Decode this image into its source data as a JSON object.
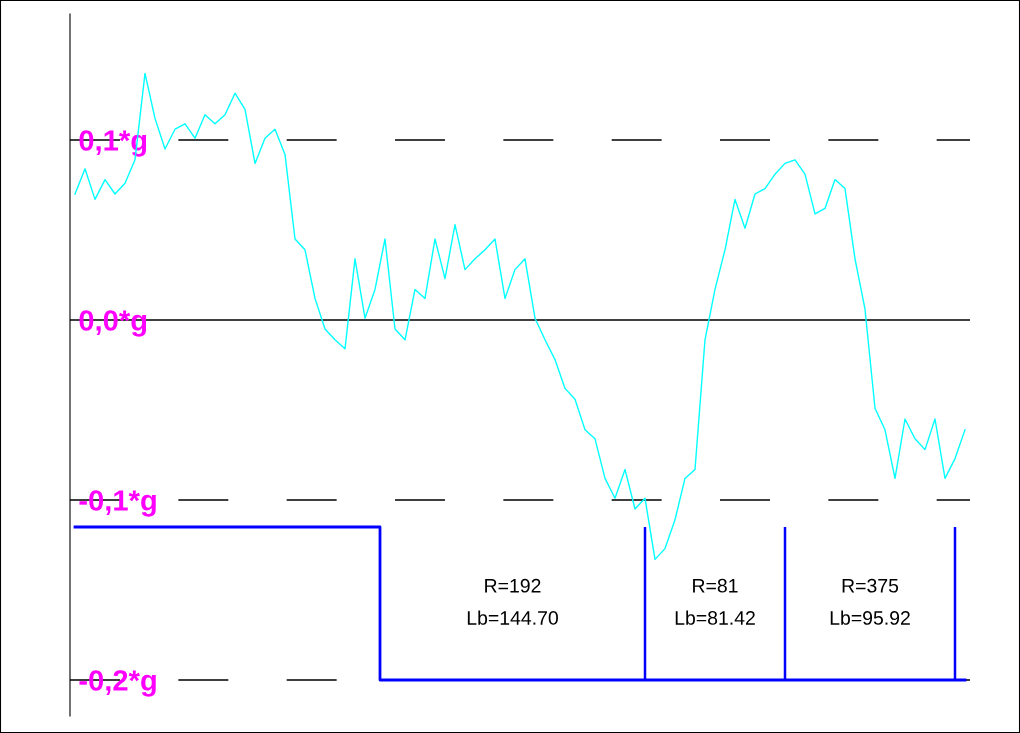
{
  "chart_data": {
    "type": "line",
    "categories": [
      null,
      null,
      null,
      null,
      null,
      null,
      null,
      null,
      null,
      null,
      null,
      null,
      null,
      null,
      null,
      null,
      null,
      null,
      null,
      null,
      null,
      null,
      null,
      null,
      null,
      null,
      null,
      null,
      null,
      null,
      null,
      null,
      null,
      null,
      null,
      null,
      null,
      null,
      null,
      null,
      null,
      null,
      null,
      null,
      null,
      null,
      null,
      null,
      null,
      null,
      null,
      null,
      null,
      null,
      null,
      null,
      null,
      null,
      null,
      null,
      null,
      null,
      null,
      null,
      null,
      null,
      null,
      null,
      null,
      null,
      null,
      null,
      null,
      null,
      null,
      null,
      null,
      null,
      null,
      null,
      null,
      null,
      null,
      null,
      null,
      null,
      null,
      null,
      null,
      null
    ],
    "series": [
      {
        "color": "#00ffff",
        "values": [
          0.07,
          0.084,
          0.067,
          0.078,
          0.07,
          0.076,
          0.089,
          0.137,
          0.112,
          0.095,
          0.106,
          0.109,
          0.101,
          0.114,
          0.109,
          0.114,
          0.126,
          0.117,
          0.087,
          0.101,
          0.106,
          0.092,
          0.045,
          0.039,
          0.012,
          -0.005,
          -0.011,
          -0.016,
          0.034,
          0.001,
          0.017,
          0.045,
          -0.005,
          -0.011,
          0.017,
          0.012,
          0.045,
          0.023,
          0.053,
          0.028,
          0.034,
          0.039,
          0.045,
          0.012,
          0.028,
          0.034,
          0.001,
          -0.011,
          -0.022,
          -0.038,
          -0.044,
          -0.061,
          -0.066,
          -0.088,
          -0.099,
          -0.083,
          -0.105,
          -0.099,
          -0.133,
          -0.127,
          -0.111,
          -0.088,
          -0.083,
          -0.011,
          0.017,
          0.039,
          0.067,
          0.051,
          0.07,
          0.073,
          0.081,
          0.087,
          0.089,
          0.081,
          0.059,
          0.062,
          0.078,
          0.073,
          0.034,
          0.006,
          -0.049,
          -0.061,
          -0.088,
          -0.055,
          -0.066,
          -0.072,
          -0.055,
          -0.088,
          -0.077,
          -0.061
        ]
      },
      {
        "type": "step",
        "color": "#0000ff",
        "values": [
          -0.115,
          -0.115,
          -0.115,
          -0.115,
          -0.115,
          -0.115,
          -0.115,
          -0.115,
          -0.115,
          -0.115,
          -0.115,
          -0.115,
          -0.115,
          -0.115,
          -0.115,
          -0.115,
          -0.115,
          -0.115,
          -0.115,
          -0.115,
          -0.115,
          -0.115,
          -0.115,
          -0.115,
          -0.115,
          -0.115,
          -0.115,
          -0.115,
          -0.115,
          -0.115,
          -0.115,
          -0.2,
          -0.2,
          -0.2,
          -0.2,
          -0.2,
          -0.2,
          -0.2,
          -0.2,
          -0.2,
          -0.2,
          -0.2,
          -0.2,
          -0.2,
          -0.2,
          -0.2,
          -0.2,
          -0.2,
          -0.2,
          -0.2,
          -0.2,
          -0.2,
          -0.2,
          -0.2,
          -0.2,
          -0.2,
          -0.2,
          -0.2,
          -0.2,
          -0.2,
          -0.2,
          -0.2,
          -0.2,
          -0.2,
          -0.2,
          -0.2,
          -0.2,
          -0.2,
          -0.2,
          -0.2,
          -0.2,
          -0.2,
          -0.2,
          -0.2,
          -0.2,
          -0.2,
          -0.2,
          -0.2,
          -0.2,
          -0.2,
          -0.2,
          -0.2,
          -0.2,
          -0.2,
          -0.2,
          -0.2,
          -0.2,
          -0.2,
          -0.2,
          -0.2
        ]
      },
      {
        "type": "bar",
        "color": "#0000ff",
        "values": [
          null,
          null,
          null,
          null,
          null,
          null,
          null,
          null,
          null,
          null,
          null,
          null,
          null,
          null,
          null,
          null,
          null,
          null,
          null,
          null,
          null,
          null,
          null,
          null,
          null,
          null,
          null,
          null,
          null,
          null,
          null,
          null,
          null,
          null,
          null,
          null,
          null,
          null,
          null,
          null,
          null,
          null,
          null,
          null,
          null,
          null,
          null,
          null,
          null,
          null,
          null,
          null,
          null,
          null,
          null,
          null,
          null,
          0.085,
          null,
          null,
          null,
          null,
          null,
          null,
          null,
          null,
          null,
          null,
          null,
          null,
          null,
          0.085,
          null,
          null,
          null,
          null,
          null,
          null,
          null,
          null,
          null,
          null,
          null,
          null,
          null,
          null,
          null,
          null,
          0.085,
          null
        ],
        "base": [
          null,
          null,
          null,
          null,
          null,
          null,
          null,
          null,
          null,
          null,
          null,
          null,
          null,
          null,
          null,
          null,
          null,
          null,
          null,
          null,
          null,
          null,
          null,
          null,
          null,
          null,
          null,
          null,
          null,
          null,
          null,
          null,
          null,
          null,
          null,
          null,
          null,
          null,
          null,
          null,
          null,
          null,
          null,
          null,
          null,
          null,
          null,
          null,
          null,
          null,
          null,
          null,
          null,
          null,
          null,
          null,
          null,
          -0.2,
          null,
          null,
          null,
          null,
          null,
          null,
          null,
          null,
          null,
          null,
          null,
          null,
          null,
          -0.2,
          null,
          null,
          null,
          null,
          null,
          null,
          null,
          null,
          null,
          null,
          null,
          null,
          null,
          null,
          null,
          null,
          -0.2,
          null
        ]
      }
    ],
    "ylim": [
      -0.22,
      0.17
    ],
    "yticks": [
      {
        "value": 0.1,
        "label": "0,1*g"
      },
      {
        "value": 0.0,
        "label": "0,0*g"
      },
      {
        "value": -0.1,
        "label": "-0,1*g"
      },
      {
        "value": -0.2,
        "label": "-0,2*g"
      }
    ],
    "ref_lines": [
      {
        "axis": "y",
        "value": 0.1,
        "color": "#000000",
        "line_style": "dashed"
      },
      {
        "axis": "y",
        "value": 0.0,
        "color": "#000000",
        "line_style": "solid"
      },
      {
        "axis": "y",
        "value": -0.1,
        "color": "#000000",
        "line_style": "dashed"
      },
      {
        "axis": "y",
        "value": -0.2,
        "color": "#000000",
        "line_style": "dashed"
      }
    ],
    "annotations": [
      "R=192\nLb=144.70",
      "R=81\nLb=81.42",
      "R=375\nLb=95.92"
    ],
    "tick_labels": "y",
    "grid": false
  }
}
